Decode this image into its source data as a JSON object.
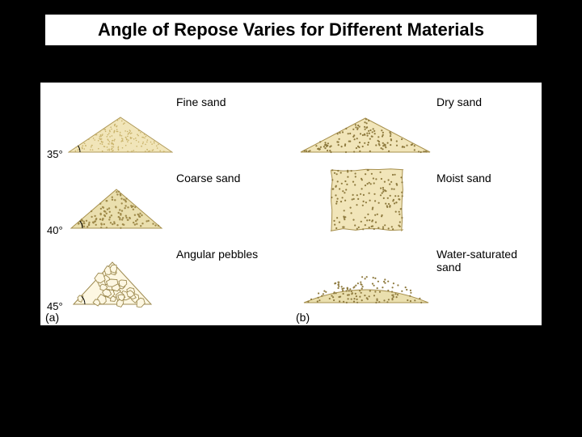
{
  "title": "Angle of Repose Varies for Different Materials",
  "background_color": "#000000",
  "figure_background": "#ffffff",
  "title_fontsize": 22,
  "label_fontsize": 14,
  "angle_fontsize": 13,
  "panel_a": {
    "label": "(a)",
    "rows": [
      {
        "angle": "35°",
        "material": "Fine sand",
        "fill": "#f1e5b9",
        "outline": "#b09a5a",
        "dot_color": "#c8b26a",
        "dot_density": 180,
        "dot_r": 0.8,
        "shape": "triangle-35"
      },
      {
        "angle": "40°",
        "material": "Coarse sand",
        "fill": "#eadfae",
        "outline": "#a7904d",
        "dot_color": "#9f8a4a",
        "dot_density": 120,
        "dot_r": 1.2,
        "shape": "triangle-40"
      },
      {
        "angle": "45°",
        "material": "Angular pebbles",
        "fill": "#fdf7e2",
        "outline": "#9d8a50",
        "dot_color": "#a7904d",
        "dot_density": 0,
        "dot_r": 0,
        "shape": "triangle-45-pebbles"
      }
    ]
  },
  "panel_b": {
    "label": "(b)",
    "rows": [
      {
        "material": "Dry sand",
        "fill": "#f1e5b9",
        "outline": "#a7904d",
        "dot_color": "#8e7a3e",
        "dot_density": 130,
        "dot_r": 1.1,
        "shape": "triangle-low"
      },
      {
        "material": "Moist sand",
        "fill": "#f1e5b9",
        "outline": "#a7904d",
        "dot_color": "#8e7a3e",
        "dot_density": 160,
        "dot_r": 1.1,
        "shape": "square-loose"
      },
      {
        "material": "Water-saturated\nsand",
        "fill": "#eadfae",
        "outline": "#a7904d",
        "dot_color": "#8e7a3e",
        "dot_density": 120,
        "dot_r": 1.1,
        "shape": "lens"
      }
    ]
  }
}
